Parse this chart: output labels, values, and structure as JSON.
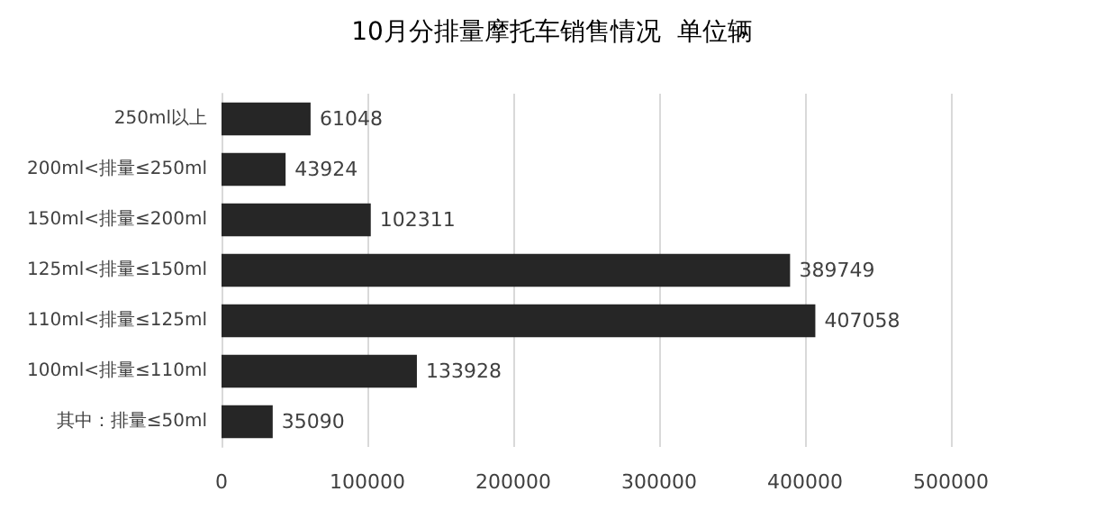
{
  "chart_data": {
    "type": "bar",
    "orientation": "horizontal",
    "title": "10月分排量摩托车销售情况  单位辆",
    "categories": [
      "250ml以上",
      "200ml<排量≤250ml",
      "150ml<排量≤200ml",
      "125ml<排量≤150ml",
      "110ml<排量≤125ml",
      "100ml<排量≤110ml",
      "其中：排量≤50ml"
    ],
    "values": [
      61048,
      43924,
      102311,
      389749,
      407058,
      133928,
      35090
    ],
    "color": "#262626",
    "xlim": [
      0,
      500000
    ],
    "xticks": [
      0,
      100000,
      200000,
      300000,
      400000,
      500000
    ],
    "grid": "x",
    "data_labels": true
  }
}
